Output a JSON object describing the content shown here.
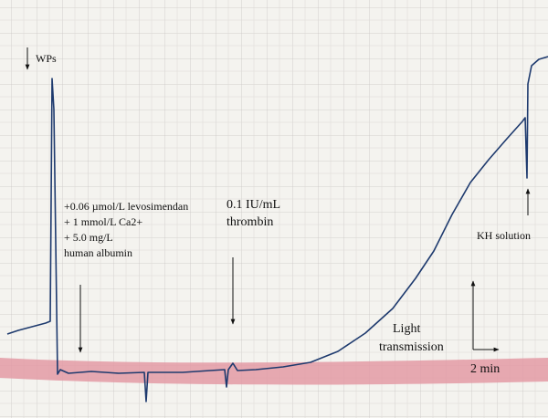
{
  "annotations": {
    "wps": "WPs",
    "treatment": [
      "+0.06 µmol/L levosimendan",
      "+ 1 mmol/L Ca2+",
      "+ 5.0 mg/L",
      "human albumin"
    ],
    "thrombin": [
      "0.1 IU/mL",
      "thrombin"
    ],
    "kh": "KH solution",
    "light": [
      "Light",
      "transmission"
    ],
    "time": "2 min"
  }
}
